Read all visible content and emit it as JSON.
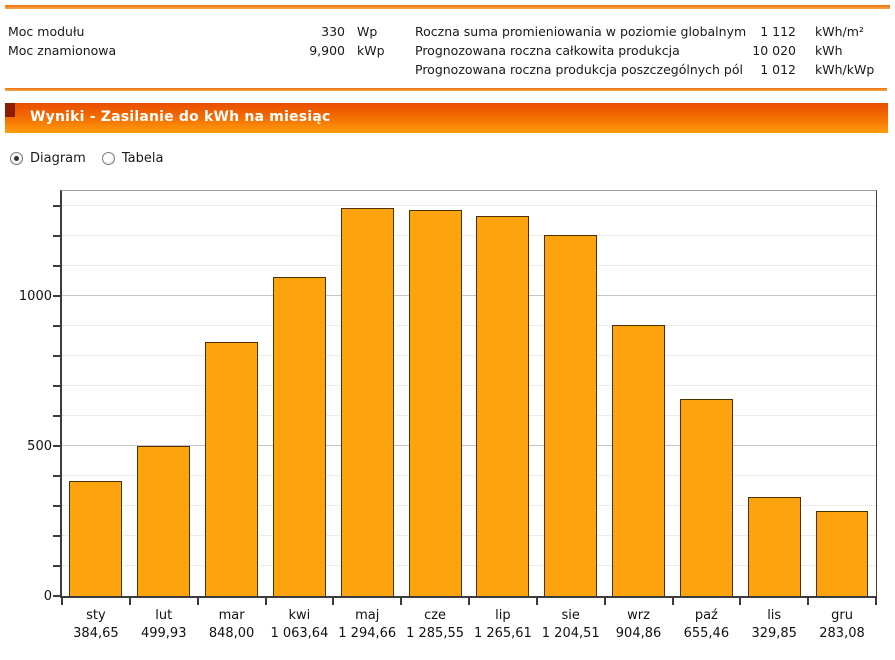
{
  "header": {
    "left_rows": [
      {
        "label": "Moc modułu",
        "value": "330",
        "unit": "Wp"
      },
      {
        "label": "Moc znamionowa",
        "value": "9,900",
        "unit": "kWp"
      }
    ],
    "right_rows": [
      {
        "label": "Roczna suma promieniowania w poziomie globalnym",
        "value": "1 112",
        "unit": "kWh/m²"
      },
      {
        "label": "Prognozowana roczna całkowita produkcja",
        "value": "10 020",
        "unit": "kWh"
      },
      {
        "label": "Prognozowana roczna produkcja poszczególnych pól",
        "value": "1 012",
        "unit": "kWh/kWp"
      }
    ]
  },
  "section": {
    "title": "Wyniki - Zasilanie do kWh na miesiąc"
  },
  "view_toggle": {
    "options": [
      {
        "label": "Diagram",
        "selected": true
      },
      {
        "label": "Tabela",
        "selected": false
      }
    ]
  },
  "colors": {
    "accent_band_top": "#e94f01",
    "accent_band_bottom": "#ff9d0c",
    "rule_orange": "#f08419",
    "bar_fill": "#fca30d",
    "bar_border": "#4a3200",
    "band_corner": "#8e1c00"
  },
  "chart_data": {
    "type": "bar",
    "title": "",
    "xlabel": "",
    "ylabel": "",
    "categories": [
      "sty",
      "lut",
      "mar",
      "kwi",
      "maj",
      "cze",
      "lip",
      "sie",
      "wrz",
      "paź",
      "lis",
      "gru"
    ],
    "values": [
      384.65,
      499.93,
      848.0,
      1063.64,
      1294.66,
      1285.55,
      1265.61,
      1204.51,
      904.86,
      655.46,
      329.85,
      283.08
    ],
    "value_labels": [
      "384,65",
      "499,93",
      "848,00",
      "1 063,64",
      "1 294,66",
      "1 285,55",
      "1 265,61",
      "1 204,51",
      "904,86",
      "655,46",
      "329,85",
      "283,08"
    ],
    "ylim": [
      0,
      1350
    ],
    "yticks_labeled": [
      {
        "value": 0,
        "label": "0"
      },
      {
        "value": 500,
        "label": "500"
      },
      {
        "value": 1000,
        "label": "1000"
      }
    ],
    "grid_step": 100,
    "grid": "minor dotted every 100, solid at labeled ticks",
    "legend": "none",
    "bar_color": "#fca30d"
  }
}
